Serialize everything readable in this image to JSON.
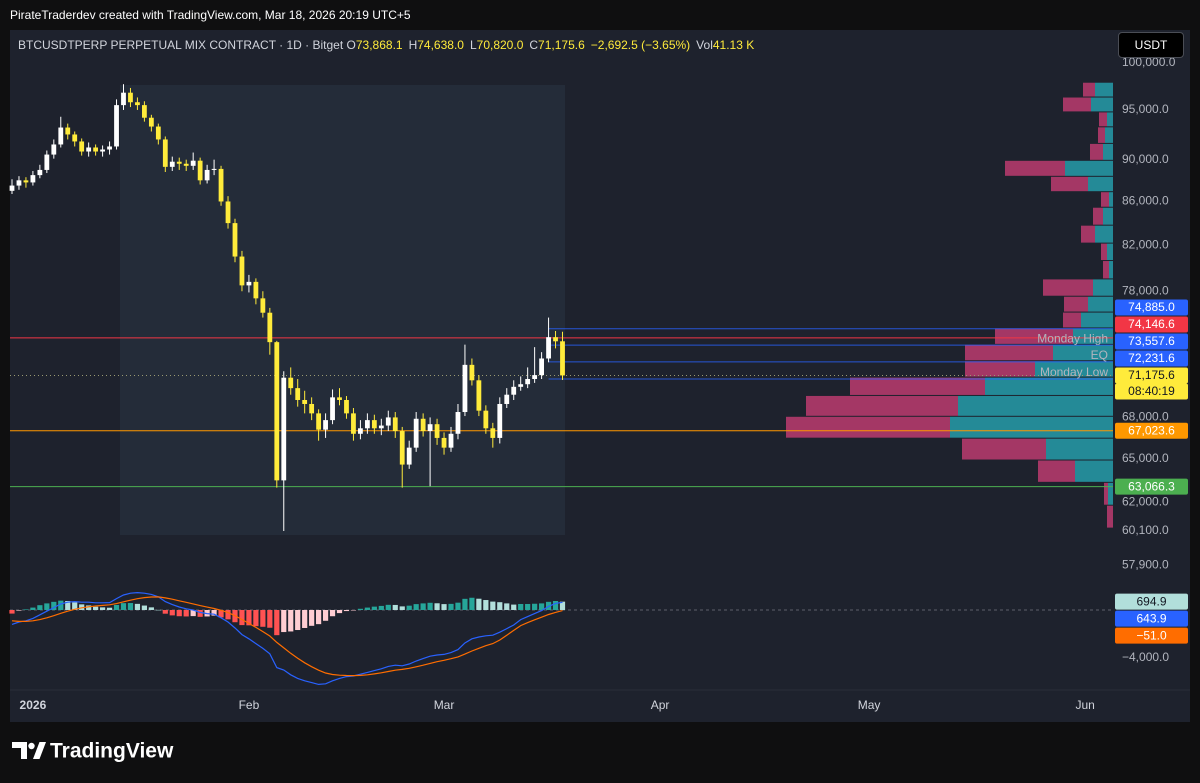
{
  "header": {
    "attribution": "PirateTraderdev created with TradingView.com, Mar 18, 2026 20:19 UTC+5"
  },
  "footer": {
    "brand": "TradingView"
  },
  "chart_data": [
    {
      "type": "candlestick",
      "legend": {
        "symbol": "BTCUSDTPERP PERPETUAL MIX CONTRACT · 1D · Bitget",
        "ohlc": [
          {
            "key": "O",
            "label": "73,868.1"
          },
          {
            "key": "H",
            "label": "74,638.0"
          },
          {
            "key": "L",
            "label": "70,820.0"
          },
          {
            "key": "C",
            "label": "71,175.6"
          }
        ],
        "change": "−2,692.5 (−3.65%)",
        "volume_key": "Vol",
        "volume": "41.13 K"
      },
      "currency": "USDT",
      "up_color": "#ffffff",
      "down_color": "#ffeb3b",
      "log_scale": true,
      "ylim": [
        57290,
        100850
      ],
      "yticks": [
        {
          "value": 100000,
          "label": "100,000.0"
        },
        {
          "value": 95000,
          "label": "95,000.0"
        },
        {
          "value": 90000,
          "label": "90,000.0"
        },
        {
          "value": 86000,
          "label": "86,000.0"
        },
        {
          "value": 82000,
          "label": "82,000.0"
        },
        {
          "value": 78000,
          "label": "78,000.0"
        },
        {
          "value": 68000,
          "label": "68,000.0"
        },
        {
          "value": 65000,
          "label": "65,000.0"
        },
        {
          "value": 62000,
          "label": "62,000.0"
        },
        {
          "value": 60100,
          "label": "60,100.0"
        },
        {
          "value": 57900,
          "label": "57,900.0"
        }
      ],
      "xlim": [
        0,
        158
      ],
      "xticks": [
        {
          "value": 3,
          "label": "2026"
        },
        {
          "value": 34,
          "label": "Feb"
        },
        {
          "value": 62,
          "label": "Mar"
        },
        {
          "value": 93,
          "label": "Apr"
        },
        {
          "value": 123,
          "label": "May"
        },
        {
          "value": 154,
          "label": "Jun"
        }
      ],
      "candles": {
        "open": [
          87000,
          87500,
          88000,
          87800,
          88500,
          89000,
          90500,
          91500,
          93200,
          92500,
          91800,
          90800,
          91200,
          90800,
          91000,
          91300,
          95500,
          96800,
          95800,
          95500,
          94200,
          93300,
          92000,
          89300,
          89800,
          89600,
          89400,
          89900,
          88000,
          89000,
          89100,
          86000,
          84000,
          81000,
          78500,
          78800,
          77400,
          76200,
          73800,
          63500,
          71000,
          70200,
          69300,
          69000,
          68300,
          67100,
          67800,
          69500,
          69300,
          68300,
          66800,
          67200,
          67800,
          67200,
          67400,
          68000,
          67000,
          64600,
          65800,
          67900,
          67000,
          67500,
          66500,
          65800,
          66800,
          68400,
          72000,
          70800,
          68500,
          67200,
          66500,
          69000,
          69700,
          70300,
          70500,
          70900,
          71200,
          72500,
          74200,
          73868.1
        ],
        "high": [
          88100,
          88400,
          88300,
          88900,
          89500,
          90900,
          92000,
          94300,
          93600,
          92800,
          92100,
          91700,
          91500,
          91400,
          91800,
          96100,
          97700,
          97300,
          96300,
          95900,
          94500,
          93600,
          92300,
          90300,
          90200,
          90000,
          90700,
          90200,
          89500,
          90000,
          89400,
          86500,
          84400,
          81500,
          79400,
          79100,
          78000,
          76600,
          73900,
          71500,
          71800,
          70900,
          70000,
          69500,
          68600,
          68300,
          70100,
          70200,
          69600,
          68700,
          67800,
          68300,
          68200,
          67900,
          68500,
          68400,
          67300,
          66300,
          68400,
          68300,
          68000,
          67900,
          66900,
          67300,
          69000,
          73600,
          72500,
          71200,
          68900,
          67600,
          69500,
          70200,
          70800,
          71100,
          71800,
          73400,
          73000,
          75800,
          74700,
          74638
        ],
        "low": [
          86700,
          87100,
          87300,
          87500,
          88200,
          88700,
          90100,
          91200,
          92000,
          91300,
          90400,
          90300,
          90400,
          90300,
          90500,
          91000,
          95000,
          95300,
          95000,
          93800,
          92800,
          91500,
          88800,
          88900,
          89000,
          88900,
          89000,
          87600,
          87700,
          88500,
          85600,
          83500,
          80500,
          78000,
          77900,
          76900,
          75800,
          72800,
          63000,
          60100,
          69700,
          68800,
          68300,
          67800,
          66300,
          66500,
          67500,
          68900,
          67900,
          66300,
          66400,
          66800,
          66800,
          66700,
          67000,
          66500,
          63000,
          64300,
          65500,
          66600,
          63100,
          66000,
          65300,
          65500,
          66400,
          68100,
          70400,
          68100,
          66800,
          65800,
          66100,
          68700,
          69300,
          70000,
          70200,
          70600,
          70900,
          72200,
          73300,
          70820
        ],
        "close": [
          87500,
          88000,
          87800,
          88500,
          89000,
          90500,
          91500,
          93200,
          92500,
          91800,
          90800,
          91200,
          90800,
          91000,
          91300,
          95500,
          96800,
          95800,
          95500,
          94200,
          93300,
          92000,
          89300,
          89800,
          89600,
          89400,
          89900,
          88000,
          89000,
          89100,
          86000,
          84000,
          81000,
          78500,
          78800,
          77400,
          76200,
          73800,
          63500,
          71000,
          70200,
          69300,
          69000,
          68300,
          67100,
          67800,
          69500,
          69300,
          68300,
          66800,
          67200,
          67800,
          67200,
          67400,
          68000,
          67000,
          64600,
          65800,
          67900,
          67000,
          67500,
          66500,
          65800,
          66800,
          68400,
          72000,
          70800,
          68500,
          67200,
          66500,
          69000,
          69700,
          70300,
          70500,
          70900,
          71200,
          72500,
          74200,
          73868.1,
          71175.6
        ]
      },
      "levels": [
        {
          "value": 74885.0,
          "label": "74,885.0",
          "color": "#2962ff",
          "start": 77
        },
        {
          "value": 74146.6,
          "label": "74,146.6",
          "color": "#f23645"
        },
        {
          "value": 73557.6,
          "label": "73,557.6",
          "name": "Monday High",
          "color": "#2962ff",
          "start": 77
        },
        {
          "value": 72231.6,
          "label": "72,231.6",
          "name": "EQ",
          "color": "#2962ff",
          "start": 77
        },
        {
          "value": 70905,
          "name": "Monday Low",
          "color": "#2962ff",
          "start": 77
        },
        {
          "value": 67023.6,
          "label": "67,023.6",
          "color": "#ff9800"
        },
        {
          "value": 63066.3,
          "label": "63,066.3",
          "color": "#4caf50"
        }
      ],
      "last_price": {
        "value": 71175.6,
        "label": "71,175.6",
        "countdown": "08:40:19",
        "color": "#ffeb3b",
        "text_color": "#131722"
      },
      "volume_profile": {
        "up_color": "#2596a3",
        "down_color": "#b23a6b",
        "price": [
          97070,
          95520,
          93980,
          92470,
          90650,
          89130,
          87550,
          86200,
          84640,
          82900,
          81400,
          79820,
          78210,
          76870,
          75560,
          74260,
          72910,
          71660,
          70360,
          68860,
          67240,
          65660,
          64120,
          62550,
          61010
        ],
        "up": [
          18,
          22,
          6,
          8,
          10,
          48,
          25,
          4,
          10,
          18,
          6,
          4,
          20,
          25,
          32,
          40,
          60,
          78,
          128,
          155,
          163,
          67,
          38,
          5,
          0
        ],
        "down": [
          12,
          28,
          8,
          7,
          13,
          60,
          37,
          8,
          10,
          14,
          6,
          6,
          50,
          24,
          18,
          78,
          88,
          70,
          135,
          152,
          164,
          84,
          37,
          4,
          6
        ]
      }
    },
    {
      "type": "macd",
      "ylim": [
        -6670,
        2500
      ],
      "yticks": [
        {
          "value": -4000,
          "label": "−4,000.0"
        }
      ],
      "histogram": {
        "colors": {
          "up_rising": "#26a69a",
          "up_falling": "#b2dfdb",
          "down_falling": "#ff5252",
          "down_rising": "#ffcdd2"
        },
        "tag_color": "#b2dfdb",
        "tag_text_color": "#131722",
        "last_label": "694.9",
        "values": [
          -300,
          -50,
          50,
          200,
          400,
          550,
          680,
          780,
          750,
          640,
          470,
          380,
          270,
          220,
          190,
          420,
          570,
          580,
          510,
          370,
          220,
          10,
          -310,
          -450,
          -520,
          -540,
          -510,
          -570,
          -540,
          -470,
          -620,
          -780,
          -1020,
          -1260,
          -1280,
          -1350,
          -1400,
          -1480,
          -2100,
          -1840,
          -1790,
          -1670,
          -1500,
          -1320,
          -1180,
          -900,
          -520,
          -260,
          -90,
          -30,
          100,
          200,
          280,
          340,
          430,
          420,
          300,
          360,
          490,
          550,
          600,
          560,
          490,
          510,
          610,
          930,
          1020,
          940,
          830,
          700,
          650,
          550,
          450,
          500,
          500,
          520,
          550,
          680,
          750,
          694.9
        ]
      },
      "series": [
        {
          "color": "#2962ff",
          "last_label": "643.9",
          "values": [
            -1200,
            -1000,
            -900,
            -700,
            -400,
            -100,
            200,
            500,
            650,
            700,
            650,
            650,
            600,
            600,
            620,
            950,
            1250,
            1400,
            1450,
            1400,
            1300,
            1100,
            700,
            450,
            250,
            100,
            0,
            -200,
            -300,
            -350,
            -650,
            -1000,
            -1500,
            -2050,
            -2400,
            -2800,
            -3200,
            -3650,
            -4800,
            -5000,
            -5400,
            -5700,
            -5900,
            -6050,
            -6200,
            -6150,
            -5900,
            -5700,
            -5550,
            -5500,
            -5350,
            -5200,
            -5050,
            -4900,
            -4700,
            -4600,
            -4650,
            -4500,
            -4250,
            -4050,
            -3850,
            -3750,
            -3700,
            -3550,
            -3300,
            -2750,
            -2400,
            -2250,
            -2150,
            -2100,
            -1850,
            -1550,
            -1250,
            -800,
            -550,
            -300,
            -50,
            300,
            550,
            643.9
          ]
        },
        {
          "color": "#ff6d00",
          "last_label": "−51.0",
          "values": [
            -900,
            -950,
            -950,
            -900,
            -800,
            -650,
            -480,
            -280,
            -100,
            60,
            180,
            270,
            330,
            380,
            430,
            530,
            680,
            820,
            940,
            1030,
            1080,
            1090,
            1010,
            900,
            770,
            640,
            510,
            370,
            240,
            120,
            -30,
            -220,
            -480,
            -790,
            -1120,
            -1450,
            -1800,
            -2170,
            -2700,
            -3160,
            -3610,
            -4030,
            -4400,
            -4730,
            -5020,
            -5250,
            -5380,
            -5440,
            -5460,
            -5470,
            -5450,
            -5400,
            -5330,
            -5240,
            -5130,
            -5020,
            -4950,
            -4860,
            -4740,
            -4600,
            -4450,
            -4310,
            -4190,
            -4060,
            -3910,
            -3680,
            -3420,
            -3190,
            -2980,
            -2800,
            -2500,
            -2100,
            -1700,
            -1300,
            -1050,
            -820,
            -600,
            -380,
            -200,
            -51
          ]
        }
      ]
    }
  ]
}
